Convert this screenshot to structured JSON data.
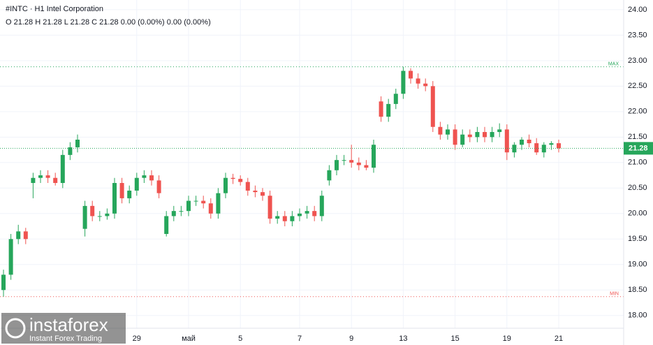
{
  "chart_data": {
    "type": "candlestick",
    "title": "#INTC · H1 Intel Corporation",
    "subtitle": "O 21.28 H 21.28 L 21.28 C 21.28 0.00 (0.00%) 0.00 (0.00%)",
    "watermark": "instaforex",
    "watermark_sub": "Instant Forex Trading",
    "categories": [
      null,
      null,
      null,
      null,
      null,
      null,
      null,
      null,
      null,
      null,
      null,
      null,
      null,
      null,
      null,
      null,
      null,
      null,
      "29",
      null,
      null,
      null,
      null,
      null,
      null,
      "май",
      null,
      null,
      null,
      null,
      null,
      null,
      "5",
      null,
      null,
      null,
      null,
      null,
      null,
      null,
      "7",
      null,
      null,
      null,
      null,
      null,
      null,
      "9",
      null,
      null,
      null,
      null,
      null,
      null,
      "13",
      null,
      null,
      null,
      null,
      null,
      null,
      "15",
      null,
      null,
      null,
      null,
      null,
      null,
      "19",
      null,
      null,
      null,
      null,
      null,
      null,
      "21"
    ],
    "series": [
      {
        "name": "open",
        "values": [
          18.5,
          18.8,
          19.5,
          19.65,
          20.6,
          20.7,
          20.75,
          20.7,
          20.6,
          21.15,
          21.3,
          19.7,
          20.15,
          19.95,
          19.95,
          20.0,
          20.6,
          20.3,
          20.45,
          20.7,
          20.75,
          20.65,
          19.6,
          19.95,
          20.05,
          20.05,
          20.25,
          20.25,
          20.2,
          20.0,
          20.4,
          20.7,
          20.68,
          20.62,
          20.45,
          20.42,
          20.35,
          19.9,
          19.95,
          19.85,
          19.95,
          20.0,
          20.05,
          19.95,
          20.65,
          20.85,
          21.05,
          21.05,
          21.0,
          20.95,
          20.9,
          22.2,
          21.9,
          22.15,
          22.35,
          22.8,
          22.65,
          22.55,
          22.5,
          21.7,
          21.55,
          21.65,
          21.35,
          21.55,
          21.5,
          21.6,
          21.5,
          21.6,
          21.65,
          21.2,
          21.35,
          21.45,
          21.38,
          21.2,
          21.35,
          21.38
        ]
      },
      {
        "name": "high",
        "values": [
          18.9,
          19.6,
          19.78,
          19.72,
          20.8,
          20.85,
          20.85,
          20.8,
          21.25,
          21.4,
          21.55,
          20.25,
          20.25,
          20.05,
          20.1,
          20.7,
          20.7,
          20.55,
          20.8,
          20.85,
          20.85,
          20.75,
          20.05,
          20.15,
          20.15,
          20.35,
          20.35,
          20.35,
          20.3,
          20.5,
          20.8,
          20.78,
          20.75,
          20.7,
          20.55,
          20.5,
          20.45,
          20.05,
          20.05,
          20.05,
          20.1,
          20.15,
          20.15,
          20.45,
          20.95,
          21.15,
          21.15,
          21.35,
          21.1,
          21.05,
          21.45,
          22.3,
          22.25,
          22.45,
          22.88,
          22.85,
          22.75,
          22.65,
          22.6,
          21.8,
          21.75,
          21.75,
          21.65,
          21.65,
          21.7,
          21.7,
          21.7,
          21.77,
          21.75,
          21.4,
          21.5,
          21.55,
          21.48,
          21.4,
          21.42,
          21.45
        ]
      },
      {
        "name": "low",
        "values": [
          18.37,
          18.7,
          19.4,
          19.4,
          20.3,
          20.6,
          20.6,
          20.55,
          20.5,
          21.05,
          21.2,
          19.55,
          19.85,
          19.85,
          19.88,
          19.9,
          20.2,
          20.2,
          20.35,
          20.6,
          20.55,
          20.3,
          19.55,
          19.85,
          19.95,
          19.95,
          20.15,
          20.1,
          19.9,
          19.9,
          20.3,
          20.58,
          20.55,
          20.35,
          20.32,
          20.25,
          19.8,
          19.8,
          19.75,
          19.75,
          19.85,
          19.9,
          19.85,
          19.85,
          20.55,
          20.75,
          20.95,
          20.9,
          20.85,
          20.85,
          20.8,
          21.8,
          21.8,
          22.05,
          22.25,
          22.55,
          22.45,
          22.4,
          21.6,
          21.45,
          21.45,
          21.25,
          21.3,
          21.4,
          21.4,
          21.4,
          21.4,
          21.5,
          21.05,
          21.1,
          21.25,
          21.3,
          21.15,
          21.1,
          21.25,
          21.2
        ]
      },
      {
        "name": "close",
        "values": [
          18.8,
          19.5,
          19.65,
          19.5,
          20.7,
          20.75,
          20.7,
          20.6,
          21.15,
          21.3,
          21.45,
          20.15,
          19.95,
          19.95,
          20.0,
          20.6,
          20.3,
          20.45,
          20.7,
          20.75,
          20.65,
          20.4,
          19.95,
          20.05,
          20.05,
          20.25,
          20.25,
          20.2,
          20.0,
          20.4,
          20.7,
          20.68,
          20.62,
          20.45,
          20.42,
          20.35,
          19.9,
          19.95,
          19.85,
          19.95,
          20.0,
          20.05,
          19.95,
          20.35,
          20.85,
          21.05,
          21.05,
          21.0,
          20.95,
          20.9,
          21.35,
          21.9,
          22.15,
          22.35,
          22.8,
          22.65,
          22.55,
          22.5,
          21.7,
          21.55,
          21.65,
          21.35,
          21.55,
          21.5,
          21.6,
          21.5,
          21.6,
          21.65,
          21.2,
          21.35,
          21.45,
          21.38,
          21.2,
          21.35,
          21.38,
          21.28
        ]
      }
    ],
    "up_color": "#26a65b",
    "down_color": "#ef5350",
    "ylim": [
      17.75,
      24.19
    ],
    "yticks": [
      {
        "value": 18,
        "label": "18.00"
      },
      {
        "value": 18.5,
        "label": "18.50"
      },
      {
        "value": 19,
        "label": "19.00"
      },
      {
        "value": 19.5,
        "label": "19.50"
      },
      {
        "value": 20,
        "label": "20.00"
      },
      {
        "value": 20.5,
        "label": "20.50"
      },
      {
        "value": 21,
        "label": "21.00"
      },
      {
        "value": 21.5,
        "label": "21.50"
      },
      {
        "value": 22,
        "label": "22.00"
      },
      {
        "value": 22.5,
        "label": "22.50"
      },
      {
        "value": 23,
        "label": "23.00"
      },
      {
        "value": 23.5,
        "label": "23.50"
      },
      {
        "value": 24,
        "label": "24.00"
      }
    ],
    "grid": true,
    "max_line": {
      "value": 22.88,
      "label": "MAX"
    },
    "min_line": {
      "value": 18.37,
      "label": "MIN"
    },
    "last_price": {
      "value": 21.28,
      "label": "21.28"
    }
  }
}
